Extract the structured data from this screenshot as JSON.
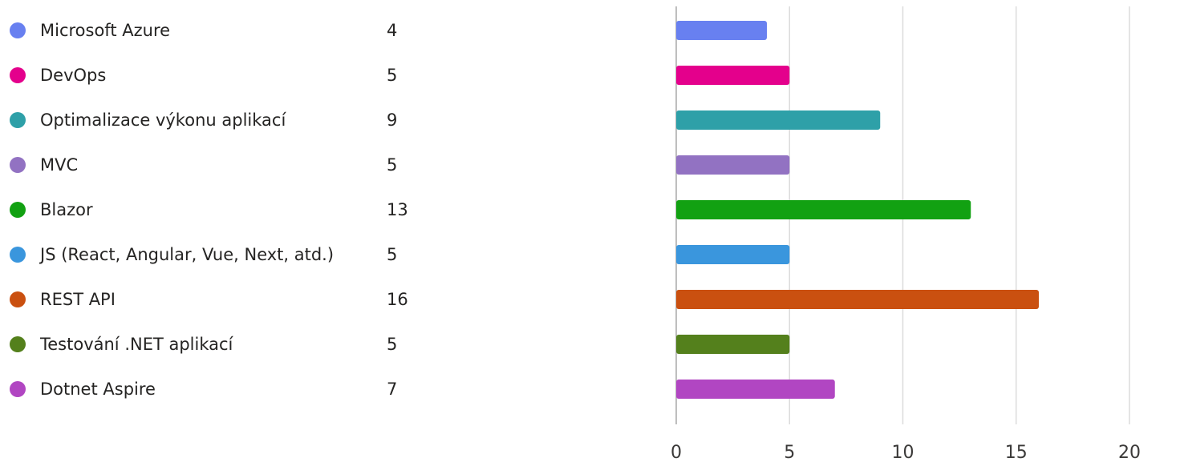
{
  "chart_data": {
    "type": "bar",
    "orientation": "horizontal",
    "title": "",
    "xlabel": "",
    "ylabel": "",
    "categories": [
      "Microsoft Azure",
      "DevOps",
      "Optimalizace výkonu aplikací",
      "MVC",
      "Blazor",
      "JS (React, Angular, Vue, Next, atd.)",
      "REST API",
      "Testování .NET aplikací",
      "Dotnet Aspire"
    ],
    "values": [
      4,
      5,
      9,
      5,
      13,
      5,
      16,
      5,
      7
    ],
    "colors": [
      "#6880F0",
      "#E4008C",
      "#2EA0A8",
      "#9272C2",
      "#12A112",
      "#3A96DD",
      "#CA5010",
      "#54801C",
      "#B146C2"
    ],
    "xlim": [
      0,
      20
    ],
    "xticks": [
      "0",
      "5",
      "10",
      "15",
      "20"
    ],
    "grid": true,
    "legend": "left, with counts"
  }
}
